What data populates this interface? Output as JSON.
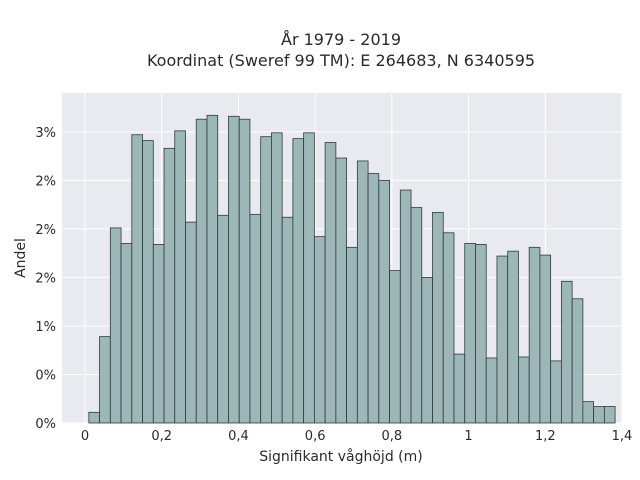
{
  "chart_data": {
    "type": "bar",
    "title_line1": "År 1979 - 2019",
    "title_line2": "Koordinat (Sweref 99 TM): E 264683, N 6340595",
    "xlabel": "Signifikant våghöjd (m)",
    "ylabel": "Andel",
    "xlim": [
      -0.06,
      1.4
    ],
    "ylim": [
      0,
      3.4
    ],
    "grid": true,
    "x_ticks": [
      0,
      0.2,
      0.4,
      0.6,
      0.8,
      1.0,
      1.2,
      1.4
    ],
    "x_tick_labels": [
      "0",
      "0,2",
      "0,4",
      "0,6",
      "0,8",
      "1",
      "1,2",
      "1,4"
    ],
    "y_ticks": [
      0,
      0.5,
      1.0,
      1.5,
      2.0,
      2.5,
      3.0
    ],
    "y_tick_labels": [
      "0%",
      "0%",
      "1%",
      "2%",
      "2%",
      "2%",
      "3%"
    ],
    "bin_width": 0.028,
    "bin_start": 0.01,
    "values": [
      0.11,
      0.89,
      2.01,
      1.85,
      2.97,
      2.91,
      1.84,
      2.83,
      3.01,
      2.07,
      3.13,
      3.17,
      2.14,
      3.16,
      3.13,
      2.15,
      2.95,
      2.99,
      2.12,
      2.93,
      2.99,
      1.92,
      2.89,
      2.73,
      1.81,
      2.7,
      2.57,
      2.5,
      1.57,
      2.4,
      2.22,
      1.5,
      2.17,
      1.96,
      0.71,
      1.85,
      1.84,
      0.67,
      1.72,
      1.77,
      0.68,
      1.81,
      1.73,
      0.64,
      1.46,
      1.28,
      0.22,
      0.17,
      0.17,
      0.0
    ],
    "bar_fill": "#9db6b7",
    "bar_edge": "#2f3b3b",
    "plot_bg": "#e9e9f0",
    "grid_color": "#ffffff"
  }
}
